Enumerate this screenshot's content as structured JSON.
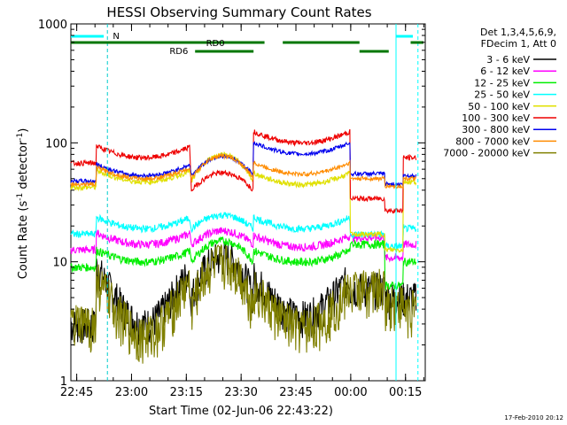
{
  "chart_data": {
    "type": "line",
    "title": "HESSI Observing Summary Count Rates",
    "xlabel": "Start Time (02-Jun-06 22:43:22)",
    "ylabel_main": "Count Rate (s",
    "ylabel_sup1": "-1",
    "ylabel_mid": " detector",
    "ylabel_sup2": "-1",
    "ylabel_end": ")",
    "y_scale": "log",
    "ylim": [
      1,
      1000
    ],
    "y_ticks": [
      {
        "v": 1,
        "label": "1"
      },
      {
        "v": 10,
        "label": "10"
      },
      {
        "v": 100,
        "label": "100"
      },
      {
        "v": 1000,
        "label": "1000"
      }
    ],
    "x_unit": "minutes since 22:43:22",
    "xlim": [
      0,
      97
    ],
    "x_ticks": [
      {
        "v": 1.6,
        "label": "22:45"
      },
      {
        "v": 16.6,
        "label": "23:00"
      },
      {
        "v": 31.6,
        "label": "23:15"
      },
      {
        "v": 46.6,
        "label": "23:30"
      },
      {
        "v": 61.6,
        "label": "23:45"
      },
      {
        "v": 76.6,
        "label": "00:00"
      },
      {
        "v": 91.6,
        "label": "00:15"
      }
    ],
    "legend_header": [
      "Det 1,3,4,5,6,9,",
      "FDecim 1, Att 0"
    ],
    "legend_placement": "right",
    "series": [
      {
        "name": "3 - 6 keV",
        "color": "#000000"
      },
      {
        "name": "6 - 12 keV",
        "color": "#ff00ff"
      },
      {
        "name": "12 - 25 keV",
        "color": "#00ee00"
      },
      {
        "name": "25 - 50 keV",
        "color": "#00ffff"
      },
      {
        "name": "50 - 100 keV",
        "color": "#e0e000"
      },
      {
        "name": "100 - 300 keV",
        "color": "#ee0000"
      },
      {
        "name": "300 - 800 keV",
        "color": "#0000ee"
      },
      {
        "name": "800 - 7000 keV",
        "color": "#ff8c00"
      },
      {
        "name": "7000 - 20000 keV",
        "color": "#808000"
      }
    ],
    "segments": [
      {
        "x0": 0,
        "x1": 7,
        "level": "low"
      },
      {
        "x0": 7,
        "x1": 32.5,
        "level": "a"
      },
      {
        "x0": 33,
        "x1": 50,
        "level": "peak"
      },
      {
        "x0": 50,
        "x1": 76.5,
        "level": "a"
      },
      {
        "x0": 77,
        "x1": 86,
        "level": "high"
      },
      {
        "x0": 86,
        "x1": 91,
        "level": "drop"
      },
      {
        "x0": 91,
        "x1": 94.5,
        "level": "recover"
      }
    ],
    "annotations": {
      "N": "N",
      "RD0": "RD0",
      "RD6": "RD6",
      "N_color": "#00cccc",
      "RD_color": "#007700",
      "saa_color": "#00ffff"
    },
    "footer_date": "17-Feb-2010 20:12"
  }
}
